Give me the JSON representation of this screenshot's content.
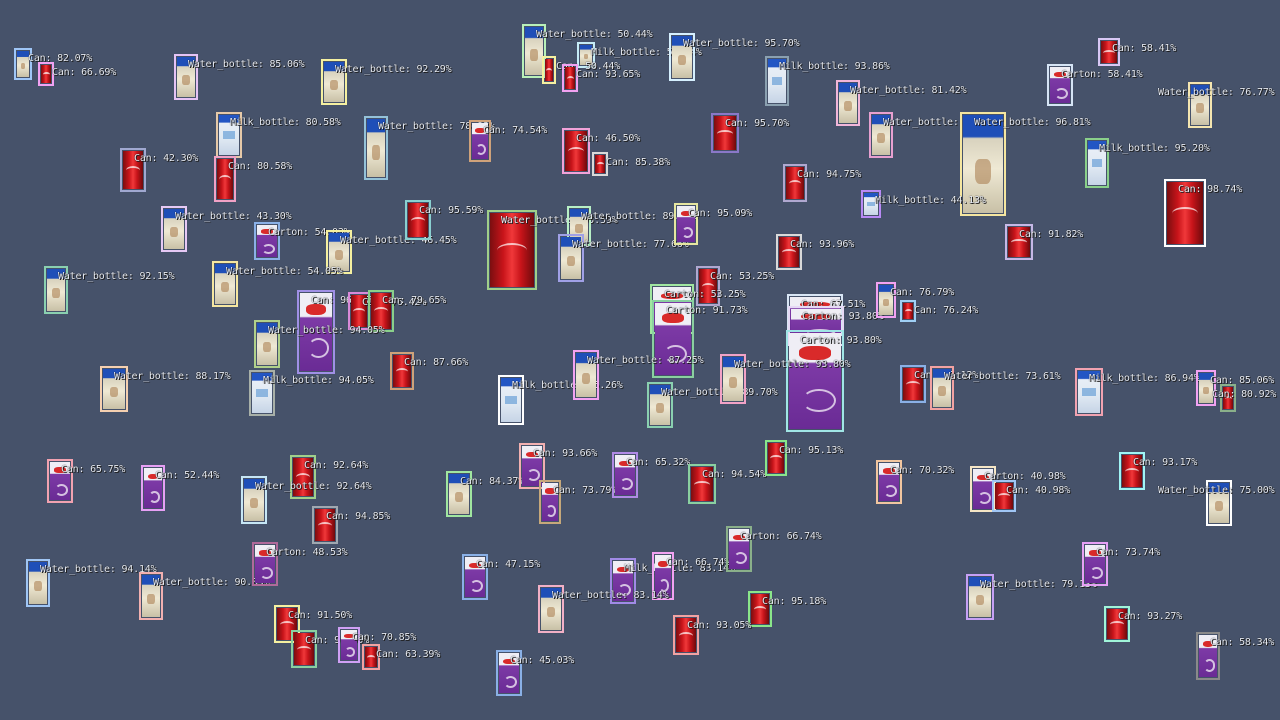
{
  "scene": {
    "background_color": "#46526a",
    "content_description": "object-detection-visualization"
  },
  "detections": [
    {
      "cls": "water",
      "color": "#9fc6f7",
      "label": "Can: 82.07%"
    },
    {
      "cls": "can",
      "color": "#f2a2f2",
      "label": "Can: 66.69%"
    },
    {
      "cls": "water",
      "color": "#e5c3f5",
      "label": "Water_bottle: 85.06%"
    },
    {
      "cls": "water",
      "color": "#f5f0a0",
      "label": "Water_bottle: 92.29%"
    },
    {
      "cls": "water",
      "color": "#b8f0b8",
      "label": "Water_bottle: 50.44%"
    },
    {
      "cls": "water",
      "color": "#c6ecf7",
      "label": "Milk_bottle: 50.44%"
    },
    {
      "cls": "can",
      "color": "#f5f0a0",
      "label": "Can: 50.44%"
    },
    {
      "cls": "can",
      "color": "#f2a2f2",
      "label": "Can: 93.65%"
    },
    {
      "cls": "water",
      "color": "#d6f0ff",
      "label": "Water_bottle: 95.70%"
    },
    {
      "cls": "milk",
      "color": "#8aa0b0",
      "label": "Milk_bottle: 93.86%"
    },
    {
      "cls": "can",
      "color": "#d9c8f5",
      "label": "Can: 58.41%"
    },
    {
      "cls": "carton",
      "color": "#d6e4f5",
      "label": "Carton: 58.41%"
    },
    {
      "cls": "water",
      "color": "#f2b6d9",
      "label": "Water_bottle: 81.42%"
    },
    {
      "cls": "water",
      "color": "#f5e6b0",
      "label": "Water_bottle: 76.77%"
    },
    {
      "cls": "milk",
      "color": "#e6c9a8",
      "label": "Milk_bottle: 80.58%"
    },
    {
      "cls": "can",
      "color": "#f2a2c6",
      "label": "Can: 80.58%"
    },
    {
      "cls": "can",
      "color": "#a0a8d0",
      "label": "Can: 42.30%"
    },
    {
      "cls": "water",
      "color": "#94c2d9",
      "label": "Water_bottle: 78.08%"
    },
    {
      "cls": "carton",
      "color": "#cfa27a",
      "label": "Can: 74.54%"
    },
    {
      "cls": "can",
      "color": "#f2a2d9",
      "label": "Can: 46.50%"
    },
    {
      "cls": "can",
      "color": "#d9d9d9",
      "label": "Can: 85.38%"
    },
    {
      "cls": "can",
      "color": "#8a78c8",
      "label": "Can: 95.70%"
    },
    {
      "cls": "water",
      "color": "#e8a0d0",
      "label": "Water_bottle: 84.72%"
    },
    {
      "cls": "water",
      "color": "#f5e6a0",
      "label": "Water_bottle: 96.81%"
    },
    {
      "cls": "milk",
      "color": "#8ad08a",
      "label": "Milk_bottle: 95.20%"
    },
    {
      "cls": "can",
      "color": "#b0a8d0",
      "label": "Can: 94.75%"
    },
    {
      "cls": "milk",
      "color": "#b88af5",
      "label": "Milk_bottle: 44.13%"
    },
    {
      "cls": "can",
      "color": "#ffffff",
      "label": "Can: 98.74%"
    },
    {
      "cls": "water",
      "color": "#e6c9f5",
      "label": "Water_bottle: 43.30%"
    },
    {
      "cls": "carton",
      "color": "#8ab0e6",
      "label": "Carton: 54.03%"
    },
    {
      "cls": "water",
      "color": "#f5f0a0",
      "label": "Water_bottle: 46.45%"
    },
    {
      "cls": "can",
      "color": "#8ad0d0",
      "label": "Can: 95.59%"
    },
    {
      "cls": "can",
      "color": "#a0d08a",
      "label": "Water_bottle: 95.59%"
    },
    {
      "cls": "water",
      "color": "#b8f0c6",
      "label": "Water_bottle: 89.49%"
    },
    {
      "cls": "water",
      "color": "#a0a0e6",
      "label": "Water_bottle: 77.66%"
    },
    {
      "cls": "carton",
      "color": "#e6e6a0",
      "label": "Can: 95.09%"
    },
    {
      "cls": "can",
      "color": "#d9d9d9",
      "label": "Can: 93.96%"
    },
    {
      "cls": "can",
      "color": "#c6b8e6",
      "label": "Can: 91.82%"
    },
    {
      "cls": "water",
      "color": "#8ad0b0",
      "label": "Water_bottle: 92.15%"
    },
    {
      "cls": "water",
      "color": "#f5e6a0",
      "label": "Water_bottle: 54.05%"
    },
    {
      "cls": "carton",
      "color": "#a090e6",
      "label": "Can: 96.95%"
    },
    {
      "cls": "can",
      "color": "#d98ad9",
      "label": "Can: 76.42%"
    },
    {
      "cls": "can",
      "color": "#8ad08a",
      "label": "Can: 79.65%"
    },
    {
      "cls": "water",
      "color": "#b0d08a",
      "label": "Water_bottle: 94.05%"
    },
    {
      "cls": "can",
      "color": "#b0a8d0",
      "label": "Can: 53.25%"
    },
    {
      "cls": "carton",
      "color": "#a0e6a0",
      "label": "Carton: 53.25%"
    },
    {
      "cls": "carton",
      "color": "#8ad0a0",
      "label": "Carton: 91.73%"
    },
    {
      "cls": "carton",
      "color": "#d9e6f5",
      "label": "Can: 67.51%"
    },
    {
      "cls": "carton",
      "color": "#e6d9f5",
      "label": "Carton: 93.80%"
    },
    {
      "cls": "carton",
      "color": "#a0e6e6",
      "label": "Carton: 93.80%"
    },
    {
      "cls": "water",
      "color": "#f2a2f2",
      "label": "Can: 76.79%"
    },
    {
      "cls": "can",
      "color": "#a0d0f5",
      "label": "Can: 76.24%"
    },
    {
      "cls": "water",
      "color": "#f5d0b0",
      "label": "Water_bottle: 88.17%"
    },
    {
      "cls": "milk",
      "color": "#a8b0a8",
      "label": "Milk_bottle: 94.05%"
    },
    {
      "cls": "can",
      "color": "#cfa27a",
      "label": "Can: 87.66%"
    },
    {
      "cls": "milk",
      "color": "#ffffff",
      "label": "Milk_bottle: 85.26%"
    },
    {
      "cls": "water",
      "color": "#f2a2f2",
      "label": "Water_bottle: 87.25%"
    },
    {
      "cls": "water",
      "color": "#8ad0b0",
      "label": "Water_bottle: 89.70%"
    },
    {
      "cls": "water",
      "color": "#f2a2c6",
      "label": "Water_bottle: 93.80%"
    },
    {
      "cls": "can",
      "color": "#8ab0e6",
      "label": "Can: 42.12%"
    },
    {
      "cls": "water",
      "color": "#f2a2a2",
      "label": "Water_bottle: 73.61%"
    },
    {
      "cls": "milk",
      "color": "#f2a2b0",
      "label": "Milk_bottle: 86.94%"
    },
    {
      "cls": "water",
      "color": "#f2a2f2",
      "label": "Can: 85.06%"
    },
    {
      "cls": "can",
      "color": "#8ab08a",
      "label": "Can: 80.92%"
    },
    {
      "cls": "carton",
      "color": "#f2a2b0",
      "label": "Can: 65.75%"
    },
    {
      "cls": "carton",
      "color": "#e6a0f5",
      "label": "Can: 52.44%"
    },
    {
      "cls": "can",
      "color": "#a0d08a",
      "label": "Can: 92.64%"
    },
    {
      "cls": "water",
      "color": "#c6e6f5",
      "label": "Water_bottle: 92.64%"
    },
    {
      "cls": "can",
      "color": "#a0a8b0",
      "label": "Can: 94.85%"
    },
    {
      "cls": "water",
      "color": "#a0e6a0",
      "label": "Can: 84.37%"
    },
    {
      "cls": "carton",
      "color": "#f2b0b0",
      "label": "Can: 93.66%"
    },
    {
      "cls": "carton",
      "color": "#c6a87a",
      "label": "Can: 73.79%"
    },
    {
      "cls": "carton",
      "color": "#b08ae6",
      "label": "Can: 65.32%"
    },
    {
      "cls": "can",
      "color": "#8ad0a0",
      "label": "Can: 94.54%"
    },
    {
      "cls": "can",
      "color": "#8ae68a",
      "label": "Can: 95.13%"
    },
    {
      "cls": "carton",
      "color": "#f2c6a0",
      "label": "Can: 70.32%"
    },
    {
      "cls": "carton",
      "color": "#f5e6c6",
      "label": "Carton: 40.98%"
    },
    {
      "cls": "can",
      "color": "#a0c6f5",
      "label": "Can: 40.98%"
    },
    {
      "cls": "can",
      "color": "#a0f5f5",
      "label": "Can: 93.17%"
    },
    {
      "cls": "water",
      "color": "#ffffff",
      "label": "Water_bottle: 75.00%"
    },
    {
      "cls": "water",
      "color": "#a0c6f5",
      "label": "Water_bottle: 94.14%"
    },
    {
      "cls": "water",
      "color": "#f2b0b0",
      "label": "Water_bottle: 90.85%"
    },
    {
      "cls": "carton",
      "color": "#b06a9a",
      "label": "Carton: 48.53%"
    },
    {
      "cls": "carton",
      "color": "#8ab0e6",
      "label": "Can: 47.15%"
    },
    {
      "cls": "carton",
      "color": "#a08ae6",
      "label": "Milk_bottle: 83.14%"
    },
    {
      "cls": "carton",
      "color": "#f2a2f2",
      "label": "Can: 66.74%"
    },
    {
      "cls": "carton",
      "color": "#8ab08a",
      "label": "Carton: 66.74%"
    },
    {
      "cls": "water",
      "color": "#f2b0c6",
      "label": "Water_bottle: 83.14%"
    },
    {
      "cls": "can",
      "color": "#8ae68a",
      "label": "Can: 95.18%"
    },
    {
      "cls": "water",
      "color": "#c6a0f5",
      "label": "Water_bottle: 79.13%"
    },
    {
      "cls": "carton",
      "color": "#e6a0f5",
      "label": "Can: 73.74%"
    },
    {
      "cls": "can",
      "color": "#f5f0a0",
      "label": "Can: 91.50%"
    },
    {
      "cls": "can",
      "color": "#8ad0a0",
      "label": "Can: 91.50%"
    },
    {
      "cls": "carton",
      "color": "#d0a0f5",
      "label": "Can: 70.85%"
    },
    {
      "cls": "can",
      "color": "#f2a2a2",
      "label": "Can: 63.39%"
    },
    {
      "cls": "can",
      "color": "#f2a2a2",
      "label": "Can: 93.05%"
    },
    {
      "cls": "carton",
      "color": "#8ab0e6",
      "label": "Can: 45.03%"
    },
    {
      "cls": "can",
      "color": "#a0f5d9",
      "label": "Can: 93.27%"
    },
    {
      "cls": "carton",
      "color": "#8a8a8a",
      "label": "Can: 58.34%"
    }
  ]
}
